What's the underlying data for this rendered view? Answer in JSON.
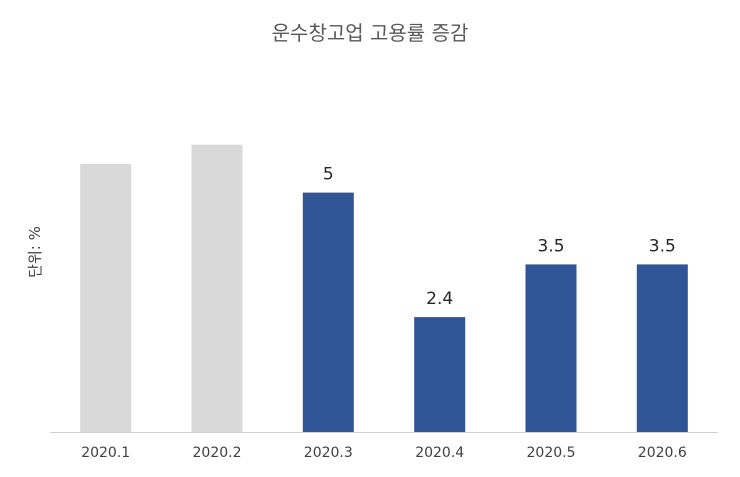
{
  "chart_data": {
    "type": "bar",
    "title": "운수창고업 고용률 증감",
    "xlabel": "",
    "ylabel": "단위: %",
    "categories": [
      "2020.1",
      "2020.2",
      "2020.3",
      "2020.4",
      "2020.5",
      "2020.6"
    ],
    "values": [
      5.6,
      6.0,
      5,
      2.4,
      3.5,
      3.5
    ],
    "data_labels": [
      "",
      "",
      "5",
      "2.4",
      "3.5",
      "3.5"
    ],
    "ylim": [
      0,
      8.5
    ],
    "grid": false,
    "legend": "none",
    "colors": {
      "muted": "#d9d9d9",
      "highlight": "#2f5597",
      "axis": "#d0d0d0"
    },
    "highlighted": [
      false,
      false,
      true,
      true,
      true,
      true
    ]
  }
}
